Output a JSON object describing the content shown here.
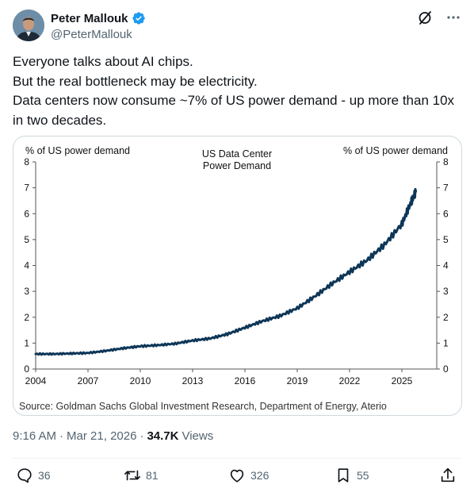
{
  "author": {
    "display_name": "Peter Mallouk",
    "handle": "@PeterMallouk",
    "avatar_icon": "avatar-photo",
    "verified_icon": "verified-badge-icon",
    "verified_color": "#1d9bf0"
  },
  "header_icons": [
    "grok-slash-icon",
    "more-icon"
  ],
  "tweet": {
    "text": "Everyone talks about AI chips.\nBut the real bottleneck may be electricity.\nData centers now consume ~7% of US power demand - up more than 10x in two decades."
  },
  "chart_data": {
    "type": "line",
    "title": "US Data Center\nPower Demand",
    "title_line1": "US Data Center",
    "title_line2": "Power Demand",
    "ylabel_left": "% of US power demand",
    "ylabel_right": "% of US power demand",
    "xlabel": "",
    "source": "Source: Goldman Sachs Global Investment Research, Department of Energy, Aterio",
    "xlim": [
      2004,
      2027
    ],
    "ylim": [
      0,
      8
    ],
    "x_ticks": [
      "2004",
      "2007",
      "2010",
      "2013",
      "2016",
      "2019",
      "2022",
      "2025"
    ],
    "y_ticks": [
      "0",
      "1",
      "2",
      "3",
      "4",
      "5",
      "6",
      "7",
      "8"
    ],
    "grid": false,
    "line_color": "#0d3657",
    "series": [
      {
        "x": [
          2004,
          2005,
          2006,
          2007,
          2008,
          2009,
          2010,
          2011,
          2012,
          2013,
          2014,
          2015,
          2016,
          2017,
          2018,
          2019,
          2020,
          2021,
          2022,
          2023,
          2024,
          2025,
          2025.5,
          2025.8
        ],
        "y": [
          0.58,
          0.58,
          0.6,
          0.62,
          0.7,
          0.8,
          0.88,
          0.92,
          0.98,
          1.1,
          1.18,
          1.35,
          1.6,
          1.85,
          2.05,
          2.35,
          2.8,
          3.3,
          3.75,
          4.2,
          4.8,
          5.6,
          6.4,
          6.85
        ]
      }
    ]
  },
  "meta": {
    "time": "9:16 AM",
    "separator": "·",
    "date": "Mar 21, 2026",
    "views_count": "34.7K",
    "views_label": "Views"
  },
  "actions": {
    "reply_count": "36",
    "repost_count": "81",
    "like_count": "326",
    "bookmark_count": "55"
  },
  "colors": {
    "text": "#0f1419",
    "secondary": "#536471",
    "border": "#cfd9de"
  }
}
